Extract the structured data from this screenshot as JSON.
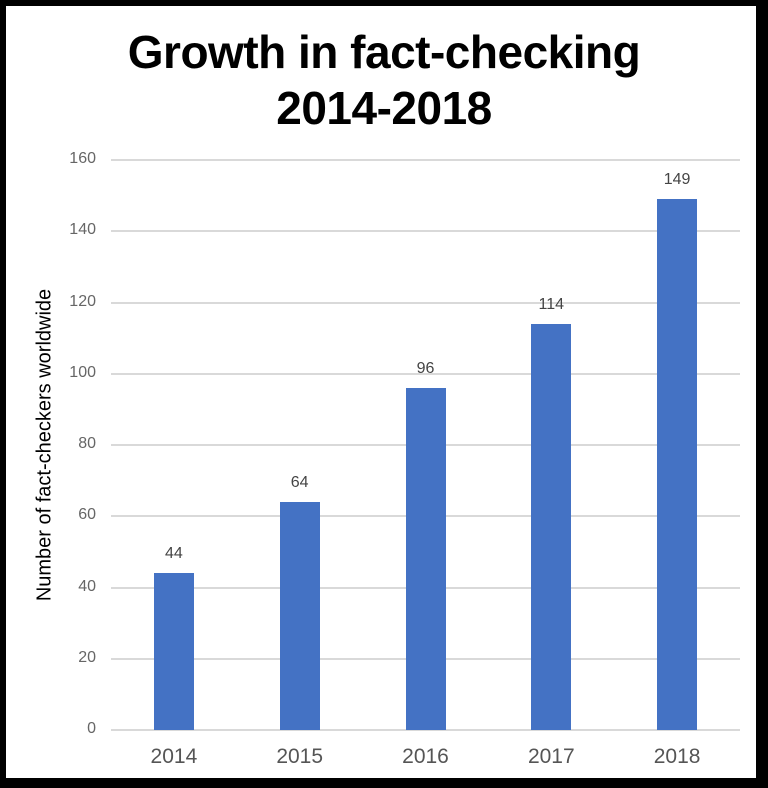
{
  "chart_data": {
    "type": "bar",
    "title": "Growth in fact-checking 2014-2018",
    "title_lines": [
      "Growth in fact-checking",
      "2014-2018"
    ],
    "xlabel": "",
    "ylabel": "Number of fact-checkers worldwide",
    "categories": [
      "2014",
      "2015",
      "2016",
      "2017",
      "2018"
    ],
    "values": [
      44,
      64,
      96,
      114,
      149
    ],
    "data_labels": [
      "44",
      "64",
      "96",
      "114",
      "149"
    ],
    "ylim": [
      0,
      160
    ],
    "yticks": [
      "0",
      "20",
      "40",
      "60",
      "80",
      "100",
      "120",
      "140",
      "160"
    ],
    "grid": true,
    "legend": null,
    "bar_color": "#4472c4"
  }
}
